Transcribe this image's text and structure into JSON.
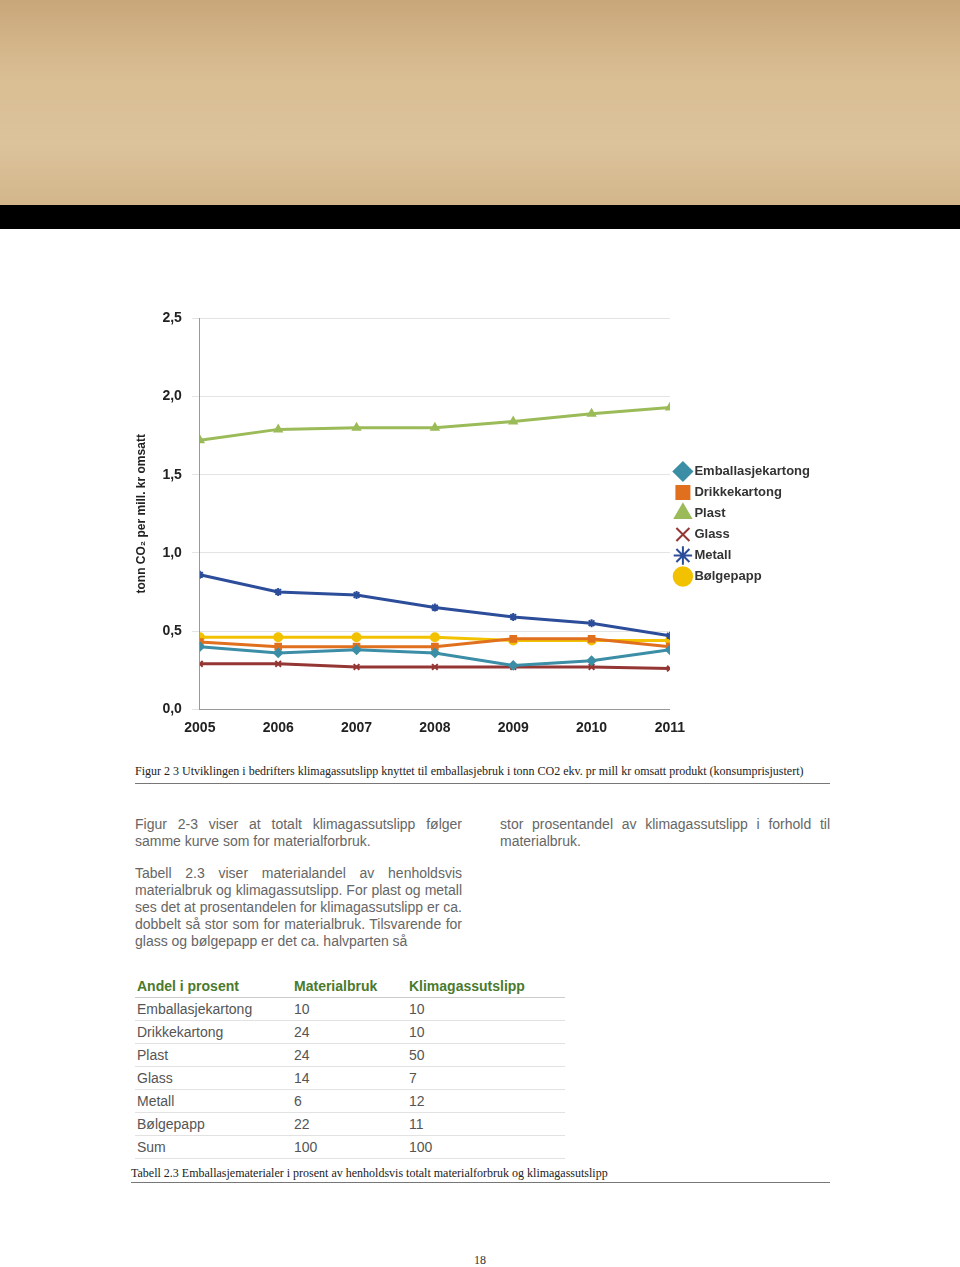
{
  "chart_data": {
    "type": "line",
    "y_label": "tonn CO₂ per mill. kr omsatt",
    "categories": [
      "2005",
      "2006",
      "2007",
      "2008",
      "2009",
      "2010",
      "2011"
    ],
    "series": [
      {
        "name": "Emballasjekartong",
        "color": "#3b8ea5",
        "marker": "diamond",
        "values": [
          0.4,
          0.36,
          0.38,
          0.36,
          0.28,
          0.31,
          0.38
        ]
      },
      {
        "name": "Drikkekartong",
        "color": "#e0701e",
        "marker": "square",
        "values": [
          0.43,
          0.4,
          0.4,
          0.4,
          0.45,
          0.45,
          0.4
        ]
      },
      {
        "name": "Plast",
        "color": "#9bbb59",
        "marker": "triangle",
        "values": [
          1.72,
          1.79,
          1.8,
          1.8,
          1.84,
          1.89,
          1.93
        ]
      },
      {
        "name": "Glass",
        "color": "#943634",
        "marker": "x",
        "values": [
          0.29,
          0.29,
          0.27,
          0.27,
          0.27,
          0.27,
          0.26
        ]
      },
      {
        "name": "Metall",
        "color": "#2c4d9a",
        "marker": "star",
        "values": [
          0.86,
          0.75,
          0.73,
          0.65,
          0.59,
          0.55,
          0.47
        ]
      },
      {
        "name": "Bølgepapp",
        "color": "#f2c200",
        "marker": "circle",
        "values": [
          0.46,
          0.46,
          0.46,
          0.46,
          0.44,
          0.44,
          0.44
        ]
      }
    ],
    "ylim": [
      0,
      2.5
    ],
    "yticks": [
      {
        "value": 0,
        "label": "0,0"
      },
      {
        "value": 0.5,
        "label": "0,5"
      },
      {
        "value": 1,
        "label": "1,0"
      },
      {
        "value": 1.5,
        "label": "1,5"
      },
      {
        "value": 2,
        "label": "2,0"
      },
      {
        "value": 2.5,
        "label": "2,5"
      }
    ],
    "grid": true,
    "legend": "right"
  },
  "document": {
    "figure_caption": "Figur 2 3 Utviklingen i bedrifters klimagassutslipp knyttet til emballasjebruk i tonn CO2 ekv. pr mill kr omsatt produkt (konsumprisjustert)",
    "left_column": [
      "Figur 2-3 viser at totalt klimagassutslipp følger samme kurve som for materialforbruk.",
      "Tabell 2.3 viser materialandel av henholdsvis materialbruk og klimagassutslipp. For plast og metall ses det at prosentandelen for klimagassutslipp er ca. dobbelt så stor som for materialbruk. Tilsvarende for glass og bølgepapp er det ca. halvparten så"
    ],
    "right_column": [
      "stor prosentandel av klimagassutslipp i forhold til materialbruk."
    ],
    "table": {
      "header": [
        "Andel i prosent",
        "Materialbruk",
        "Klimagassutslipp"
      ],
      "rows": [
        [
          "Emballasjekartong",
          10,
          10
        ],
        [
          "Drikkekartong",
          24,
          10
        ],
        [
          "Plast",
          24,
          50
        ],
        [
          "Glass",
          14,
          7
        ],
        [
          "Metall",
          6,
          12
        ],
        [
          "Bølgepapp",
          22,
          11
        ],
        [
          "Sum",
          100,
          100
        ]
      ]
    },
    "table_caption": "Tabell 2.3 Emballasjematerialer i prosent av henholdsvis totalt materialforbruk og klimagassutslipp",
    "page_number": "18"
  }
}
